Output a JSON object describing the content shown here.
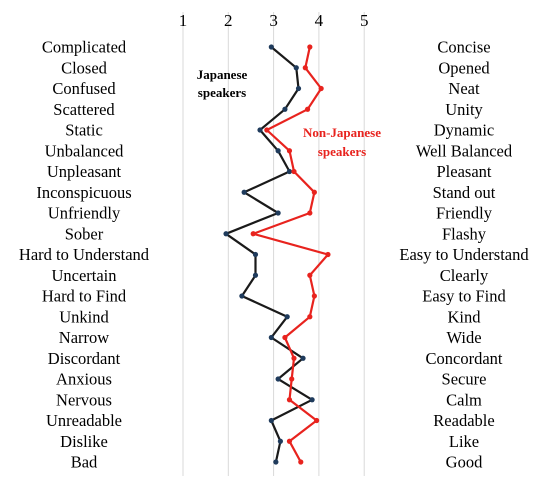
{
  "chart_data": {
    "type": "line",
    "title": "",
    "x_ticks": [
      1,
      2,
      3,
      4,
      5
    ],
    "xlim": [
      1,
      5
    ],
    "grid": true,
    "left_labels": [
      "Complicated",
      "Closed",
      "Confused",
      "Scattered",
      "Static",
      "Unbalanced",
      "Unpleasant",
      "Inconspicuous",
      "Unfriendly",
      "Sober",
      "Hard to Understand",
      "Uncertain",
      "Hard to Find",
      "Unkind",
      "Narrow",
      "Discordant",
      "Anxious",
      "Nervous",
      "Unreadable",
      "Dislike",
      "Bad"
    ],
    "right_labels": [
      "Concise",
      "Opened",
      "Neat",
      "Unity",
      "Dynamic",
      "Well Balanced",
      "Pleasant",
      "Stand out",
      "Friendly",
      "Flashy",
      "Easy to Understand",
      "Clearly",
      "Easy to Find",
      "Kind",
      "Wide",
      "Concordant",
      "Secure",
      "Calm",
      "Readable",
      "Like",
      "Good"
    ],
    "series": [
      {
        "name": "Japanese speakers",
        "color": "#1a1a1a",
        "values": [
          2.95,
          3.5,
          3.55,
          3.25,
          2.7,
          3.1,
          3.35,
          2.35,
          3.1,
          1.95,
          2.6,
          2.6,
          2.3,
          3.3,
          2.95,
          3.65,
          3.1,
          3.85,
          2.95,
          3.15,
          3.05
        ]
      },
      {
        "name": "Non-Japanese speakers",
        "color": "#e8231e",
        "values": [
          3.8,
          3.7,
          4.05,
          3.75,
          2.85,
          3.35,
          3.45,
          3.9,
          3.8,
          2.55,
          4.2,
          3.8,
          3.9,
          3.8,
          3.25,
          3.45,
          3.4,
          3.35,
          3.95,
          3.35,
          3.6
        ]
      }
    ],
    "annotations": [
      {
        "series": "Japanese speakers",
        "lines": [
          "Japanese",
          "speakers"
        ]
      },
      {
        "series": "Non-Japanese speakers",
        "lines": [
          "Non-Japanese",
          "speakers"
        ]
      }
    ]
  }
}
